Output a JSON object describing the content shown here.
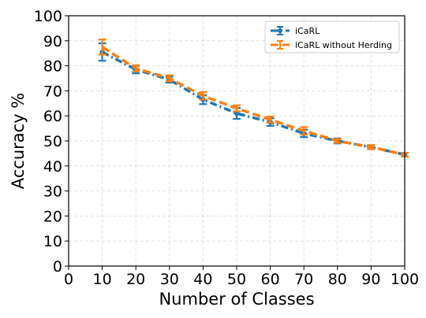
{
  "chart_data": {
    "type": "line",
    "title": "",
    "xlabel": "Number of Classes",
    "ylabel": "Accuracy %",
    "xlim": [
      0,
      100
    ],
    "ylim": [
      0,
      100
    ],
    "x_ticks": [
      0,
      10,
      20,
      30,
      40,
      50,
      60,
      70,
      80,
      90,
      100
    ],
    "y_ticks": [
      0,
      10,
      20,
      30,
      40,
      50,
      60,
      70,
      80,
      90,
      100
    ],
    "grid": true,
    "legend_position": "top-right",
    "x": [
      10,
      20,
      30,
      40,
      50,
      60,
      70,
      80,
      90,
      100
    ],
    "series": [
      {
        "name": "iCaRL",
        "color": "#1f77b4",
        "linestyle": "dashdot",
        "marker": "circle",
        "values": [
          85.5,
          78.5,
          74.5,
          66.5,
          61.0,
          57.5,
          53.0,
          50.0,
          47.5,
          44.5
        ],
        "errors": [
          3.5,
          1.5,
          1.2,
          1.8,
          2.2,
          1.5,
          1.5,
          1.0,
          0.8,
          0.7
        ]
      },
      {
        "name": "iCaRL without Herding",
        "color": "#ff7f0e",
        "linestyle": "dashed",
        "marker": "none",
        "values": [
          87.5,
          79.0,
          75.0,
          68.0,
          63.0,
          58.5,
          54.0,
          50.0,
          47.5,
          44.5
        ],
        "errors": [
          3.0,
          1.2,
          1.2,
          1.5,
          1.2,
          1.2,
          1.5,
          0.8,
          0.8,
          0.7
        ]
      }
    ]
  }
}
